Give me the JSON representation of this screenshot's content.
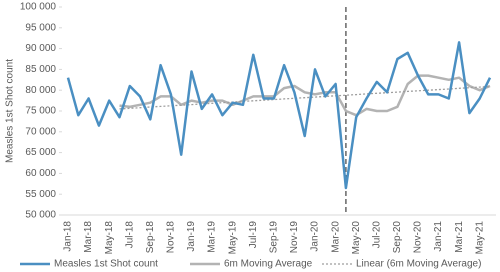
{
  "chart_data": {
    "type": "line",
    "y_label": "Measles 1st Shot count",
    "categories": [
      "Jan-18",
      null,
      "Mar-18",
      null,
      "May-18",
      null,
      "Jul-18",
      null,
      "Sep-18",
      null,
      "Nov-18",
      null,
      "Jan-19",
      null,
      "Mar-19",
      null,
      "May-19",
      null,
      "Jul-19",
      null,
      "Sep-19",
      null,
      "Nov-19",
      null,
      "Jan-20",
      null,
      "Mar-20",
      null,
      "May-20",
      null,
      "Jul-20",
      null,
      "Sep-20",
      null,
      "Nov-20",
      null,
      "Jan-21",
      null,
      "Mar-21",
      null,
      "May-21",
      null
    ],
    "series": [
      {
        "name": "Measles 1st Shot count",
        "color": "#4a8fc2",
        "style": "solid",
        "values": [
          83000,
          74000,
          78000,
          71500,
          77500,
          73500,
          81000,
          78500,
          73000,
          86000,
          79000,
          64500,
          84500,
          75500,
          79000,
          74000,
          77000,
          76500,
          88500,
          78000,
          78000,
          86000,
          79500,
          69000,
          85000,
          78500,
          81500,
          56500,
          73500,
          78000,
          82000,
          79500,
          87500,
          89000,
          83500,
          79000,
          79000,
          78000,
          91500,
          74500,
          78000,
          83000
        ]
      },
      {
        "name": "6m Moving Average",
        "color": "#b3b3b3",
        "style": "solid",
        "values": [
          null,
          null,
          null,
          null,
          null,
          76300,
          76000,
          76500,
          77000,
          78500,
          78500,
          76500,
          77500,
          77000,
          77500,
          77500,
          76500,
          77500,
          78500,
          78500,
          78500,
          80500,
          81000,
          79500,
          79000,
          79500,
          79500,
          75000,
          74000,
          75500,
          75000,
          75000,
          76000,
          81500,
          83500,
          83500,
          83000,
          82500,
          83000,
          81000,
          80000,
          81000
        ]
      },
      {
        "name": "Linear (6m Moving Average)",
        "color": "#9e9e9e",
        "style": "dotted",
        "values": [
          null,
          null,
          null,
          null,
          null,
          75500,
          75650,
          75800,
          75950,
          76100,
          76250,
          76400,
          76550,
          76700,
          76850,
          77000,
          77150,
          77300,
          77450,
          77600,
          77750,
          77900,
          78050,
          78200,
          78350,
          78500,
          78650,
          78800,
          78950,
          79100,
          79250,
          79400,
          79550,
          79700,
          79850,
          80000,
          80150,
          80300,
          80450,
          80600,
          80750,
          80900
        ]
      }
    ],
    "ylim": [
      50000,
      100000
    ],
    "yticks": [
      {
        "value": 50000,
        "label": "50 000"
      },
      {
        "value": 55000,
        "label": "55 000"
      },
      {
        "value": 60000,
        "label": "60 000"
      },
      {
        "value": 65000,
        "label": "65 000"
      },
      {
        "value": 70000,
        "label": "70 000"
      },
      {
        "value": 75000,
        "label": "75 000"
      },
      {
        "value": 80000,
        "label": "80 000"
      },
      {
        "value": 85000,
        "label": "85 000"
      },
      {
        "value": 90000,
        "label": "90 000"
      },
      {
        "value": 95000,
        "label": "95 000"
      },
      {
        "value": 100000,
        "label": "100 000"
      }
    ],
    "grid": false
  }
}
